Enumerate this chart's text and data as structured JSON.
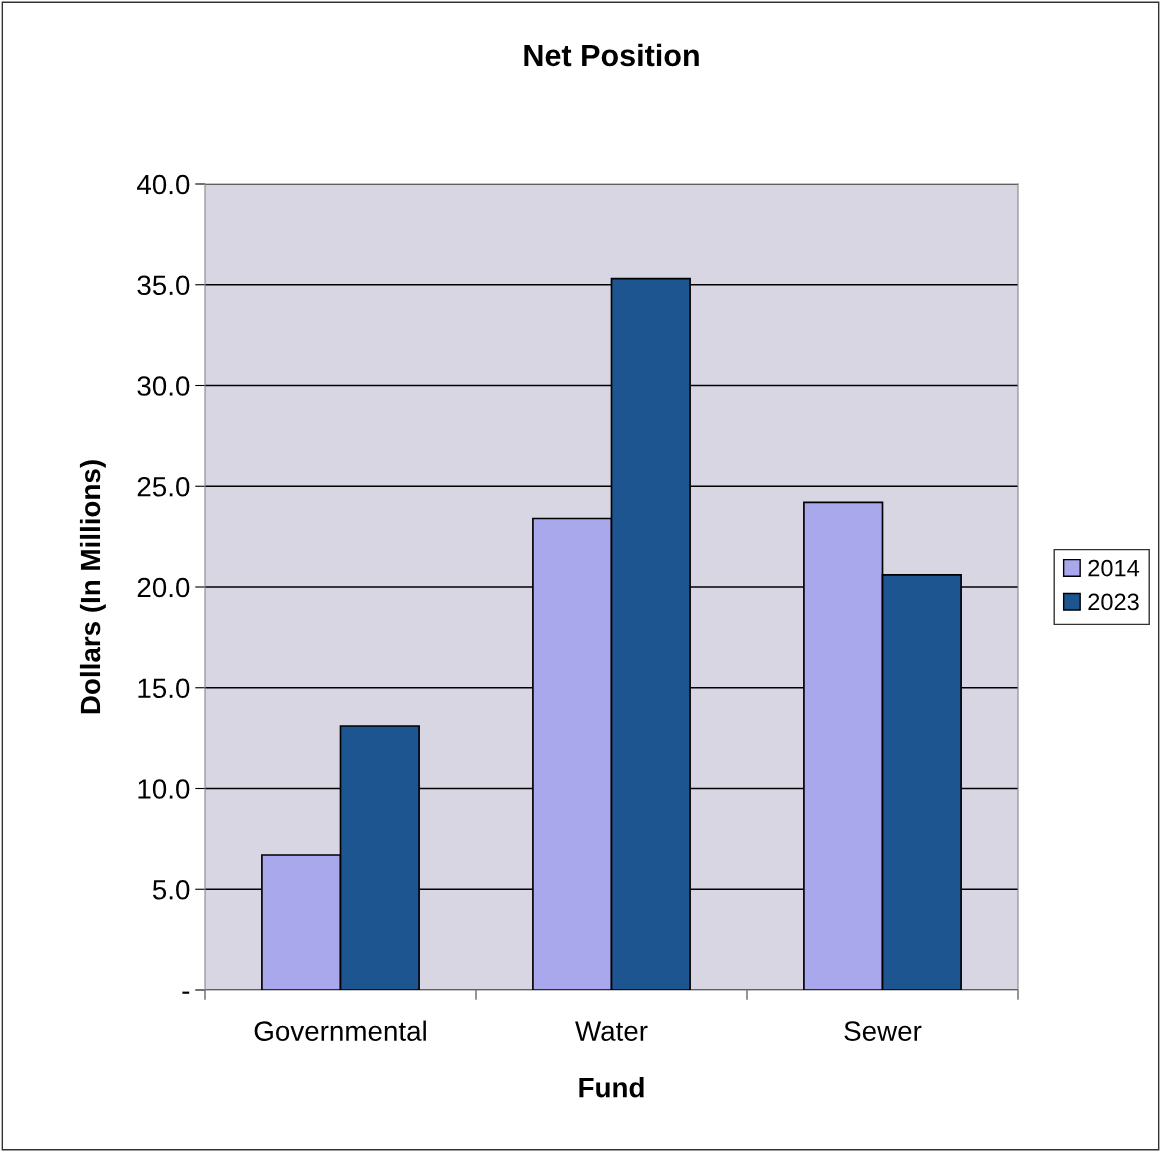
{
  "chart_data": {
    "type": "bar",
    "title": "Net Position",
    "xlabel": "Fund",
    "ylabel": "Dollars (In Millions)",
    "categories": [
      "Governmental",
      "Water",
      "Sewer"
    ],
    "series": [
      {
        "name": "2014",
        "color": "#a9a8ec",
        "values": [
          6.7,
          23.4,
          24.2
        ]
      },
      {
        "name": "2023",
        "color": "#1c5590",
        "values": [
          13.1,
          35.3,
          20.6
        ]
      }
    ],
    "ylim": [
      0,
      40
    ],
    "yticks": [
      {
        "value": 0,
        "label": "-"
      },
      {
        "value": 5,
        "label": "5.0"
      },
      {
        "value": 10,
        "label": "10.0"
      },
      {
        "value": 15,
        "label": "15.0"
      },
      {
        "value": 20,
        "label": "20.0"
      },
      {
        "value": 25,
        "label": "25.0"
      },
      {
        "value": 30,
        "label": "30.0"
      },
      {
        "value": 35,
        "label": "35.0"
      },
      {
        "value": 40,
        "label": "40.0"
      }
    ],
    "grid": "y",
    "legend": "right"
  }
}
